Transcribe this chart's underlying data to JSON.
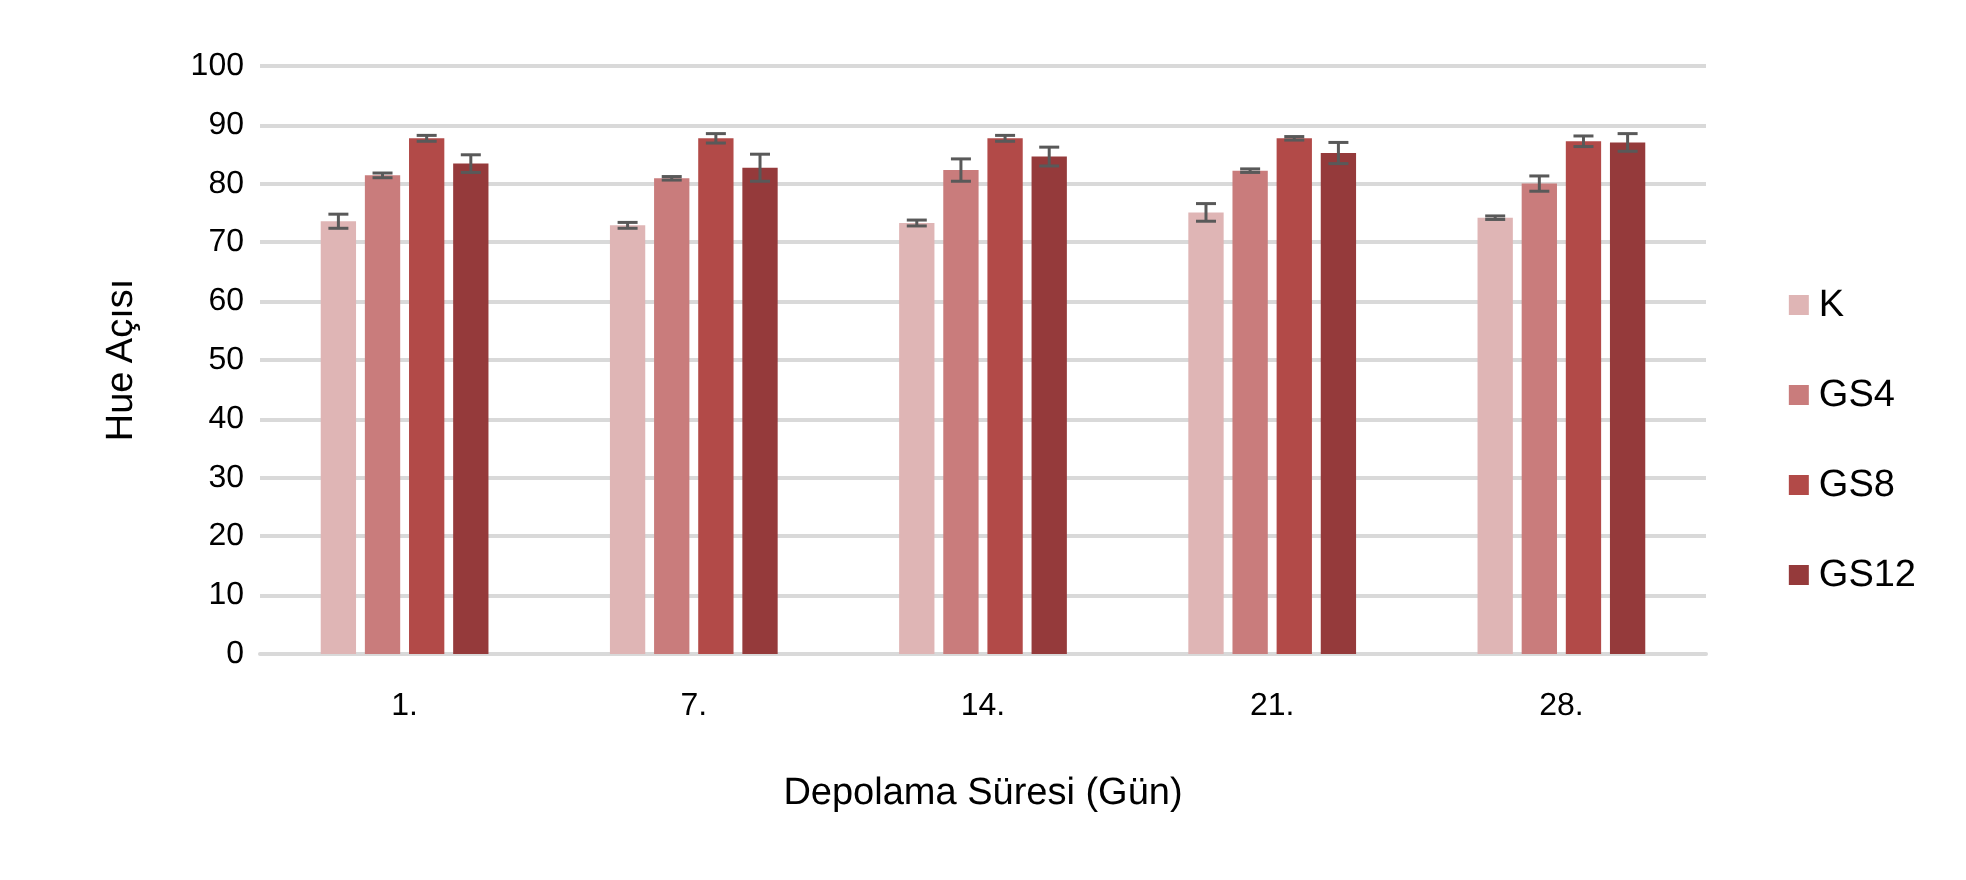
{
  "chart_data": {
    "type": "bar",
    "xlabel": "Depolama Süresi (Gün)",
    "ylabel": "Hue Açısı",
    "categories": [
      "1.",
      "7.",
      "14.",
      "21.",
      "28."
    ],
    "series": [
      {
        "name": "K",
        "color": "#dfb5b5",
        "values": [
          73.6,
          72.9,
          73.3,
          75.1,
          74.2
        ],
        "errors": [
          1.2,
          0.5,
          0.5,
          1.5,
          0.3
        ]
      },
      {
        "name": "GS4",
        "color": "#c97c7c",
        "values": [
          81.4,
          80.9,
          82.3,
          82.2,
          80.0
        ],
        "errors": [
          0.4,
          0.3,
          1.9,
          0.3,
          1.3
        ]
      },
      {
        "name": "GS8",
        "color": "#b24a48",
        "values": [
          87.7,
          87.7,
          87.7,
          87.7,
          87.2
        ],
        "errors": [
          0.5,
          0.8,
          0.5,
          0.3,
          0.9
        ]
      },
      {
        "name": "GS12",
        "color": "#953a3b",
        "values": [
          83.4,
          82.7,
          84.6,
          85.2,
          87.0
        ],
        "errors": [
          1.5,
          2.3,
          1.6,
          1.8,
          1.5
        ]
      }
    ],
    "ylim": [
      0,
      100
    ],
    "yticks": [
      0,
      10,
      20,
      30,
      40,
      50,
      60,
      70,
      80,
      90,
      100
    ],
    "grid": "y",
    "legend": "right"
  }
}
